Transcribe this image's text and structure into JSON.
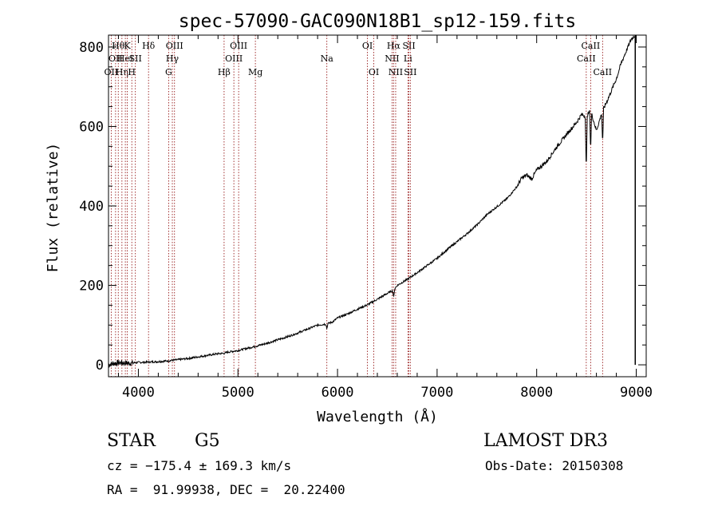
{
  "chart_data": {
    "type": "line",
    "title": "spec-57090-GAC090N18B1_sp12-159.fits",
    "xlabel": "Wavelength (Å)",
    "ylabel": "Flux (relative)",
    "xlim": [
      3700,
      9100
    ],
    "ylim": [
      -30,
      830
    ],
    "xticks": [
      4000,
      5000,
      6000,
      7000,
      8000,
      9000
    ],
    "xtick_labels": [
      "4000",
      "5000",
      "6000",
      "7000",
      "8000",
      "9000"
    ],
    "yticks": [
      0,
      200,
      400,
      600,
      800
    ],
    "ytick_labels": [
      "0",
      "200",
      "400",
      "600",
      "800"
    ],
    "series": [
      {
        "name": "flux",
        "x": [
          3700,
          3750,
          3800,
          3850,
          3900,
          3950,
          4000,
          4100,
          4200,
          4300,
          4400,
          4500,
          4600,
          4700,
          4800,
          4861,
          4900,
          5000,
          5100,
          5200,
          5300,
          5400,
          5500,
          5600,
          5700,
          5800,
          5893,
          5950,
          6000,
          6100,
          6200,
          6300,
          6400,
          6500,
          6563,
          6600,
          6700,
          6800,
          6900,
          7000,
          7100,
          7200,
          7300,
          7400,
          7500,
          7600,
          7700,
          7800,
          7850,
          7900,
          7950,
          8000,
          8100,
          8200,
          8300,
          8400,
          8450,
          8498,
          8542,
          8600,
          8662,
          8700,
          8750,
          8800,
          8850,
          8900,
          8950,
          8990
        ],
        "y": [
          0,
          4,
          5,
          5,
          4,
          5,
          6,
          7,
          8,
          10,
          13,
          16,
          20,
          24,
          28,
          29,
          32,
          36,
          42,
          48,
          55,
          63,
          71,
          80,
          90,
          100,
          103,
          108,
          118,
          128,
          140,
          151,
          165,
          180,
          188,
          200,
          215,
          232,
          250,
          268,
          290,
          310,
          330,
          352,
          378,
          398,
          418,
          448,
          470,
          478,
          468,
          490,
          512,
          548,
          580,
          610,
          630,
          625,
          640,
          590,
          640,
          660,
          690,
          720,
          760,
          790,
          820,
          830
        ]
      }
    ],
    "absorption_dips": [
      {
        "x": 8498,
        "y": 485
      },
      {
        "x": 8542,
        "y": 535
      },
      {
        "x": 8662,
        "y": 555
      },
      {
        "x": 6563,
        "y": 170
      },
      {
        "x": 5893,
        "y": 90
      }
    ],
    "line_markers": [
      {
        "wavelength": 3727,
        "label": "OII",
        "row": 3
      },
      {
        "wavelength": 3771,
        "label": "OII",
        "row": 2
      },
      {
        "wavelength": 3798,
        "label": "Hθ",
        "row": 1
      },
      {
        "wavelength": 3835,
        "label": "Hη",
        "row": 3
      },
      {
        "wavelength": 3869,
        "label": "HeI",
        "row": 2
      },
      {
        "wavelength": 3889,
        "label": "K",
        "row": 1
      },
      {
        "wavelength": 3934,
        "label": "H",
        "row": 3
      },
      {
        "wavelength": 3970,
        "label": "SII",
        "row": 2
      },
      {
        "wavelength": 4102,
        "label": "Hδ",
        "row": 1
      },
      {
        "wavelength": 4304,
        "label": "G",
        "row": 3
      },
      {
        "wavelength": 4341,
        "label": "Hγ",
        "row": 2
      },
      {
        "wavelength": 4363,
        "label": "OIII",
        "row": 1
      },
      {
        "wavelength": 4861,
        "label": "Hβ",
        "row": 3
      },
      {
        "wavelength": 4959,
        "label": "OIII",
        "row": 2
      },
      {
        "wavelength": 5007,
        "label": "OIII",
        "row": 1
      },
      {
        "wavelength": 5175,
        "label": "Mg",
        "row": 3
      },
      {
        "wavelength": 5893,
        "label": "Na",
        "row": 2
      },
      {
        "wavelength": 6300,
        "label": "OI",
        "row": 1
      },
      {
        "wavelength": 6364,
        "label": "OI",
        "row": 3
      },
      {
        "wavelength": 6548,
        "label": "NII",
        "row": 2
      },
      {
        "wavelength": 6563,
        "label": "Hα",
        "row": 1
      },
      {
        "wavelength": 6584,
        "label": "NII",
        "row": 3
      },
      {
        "wavelength": 6707,
        "label": "Li",
        "row": 2
      },
      {
        "wavelength": 6717,
        "label": "SII",
        "row": 1
      },
      {
        "wavelength": 6731,
        "label": "SII",
        "row": 3
      },
      {
        "wavelength": 8498,
        "label": "CaII",
        "row": 2
      },
      {
        "wavelength": 8542,
        "label": "CaII",
        "row": 1
      },
      {
        "wavelength": 8662,
        "label": "CaII",
        "row": 3
      }
    ],
    "marker_color": "#8b0000",
    "line_color": "#000000"
  },
  "info": {
    "class": "STAR",
    "subclass": "G5",
    "survey": "LAMOST DR3",
    "cz": "cz = −175.4 ± 169.3 km/s",
    "obs_date": "Obs-Date: 20150308",
    "coords": "RA =  91.99938, DEC =  20.22400"
  }
}
